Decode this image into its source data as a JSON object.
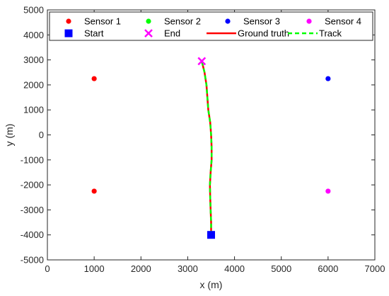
{
  "chart_data": {
    "type": "scatter",
    "title": "",
    "xlabel": "x (m)",
    "ylabel": "y (m)",
    "xlim": [
      0,
      7000
    ],
    "ylim": [
      -5000,
      5000
    ],
    "xticks": [
      0,
      1000,
      2000,
      3000,
      4000,
      5000,
      6000,
      7000
    ],
    "yticks": [
      -5000,
      -4000,
      -3000,
      -2000,
      -1000,
      0,
      1000,
      2000,
      3000,
      4000,
      5000
    ],
    "grid": false,
    "legend_position": "top",
    "series": [
      {
        "name": "Sensor 1",
        "kind": "marker",
        "marker": "circle",
        "color": "#ff0000",
        "points": [
          {
            "x": 1000,
            "y": 2250
          },
          {
            "x": 1000,
            "y": -2250
          }
        ]
      },
      {
        "name": "Sensor 2",
        "kind": "marker",
        "marker": "circle",
        "color": "#00ff00",
        "points": []
      },
      {
        "name": "Sensor 3",
        "kind": "marker",
        "marker": "circle",
        "color": "#0000ff",
        "points": [
          {
            "x": 6000,
            "y": 2250
          }
        ]
      },
      {
        "name": "Sensor 4",
        "kind": "marker",
        "marker": "circle",
        "color": "#ff00ff",
        "points": [
          {
            "x": 6000,
            "y": -2250
          }
        ]
      },
      {
        "name": "Start",
        "kind": "marker",
        "marker": "square",
        "color": "#0000ff",
        "points": [
          {
            "x": 3500,
            "y": -4000
          }
        ]
      },
      {
        "name": "End",
        "kind": "marker",
        "marker": "x",
        "color": "#ff00ff",
        "points": [
          {
            "x": 3300,
            "y": 2950
          }
        ]
      },
      {
        "name": "Ground truth",
        "kind": "line",
        "style": "solid",
        "color": "#ff0000",
        "points": [
          {
            "x": 3500,
            "y": -4000
          },
          {
            "x": 3500,
            "y": -3500
          },
          {
            "x": 3490,
            "y": -3000
          },
          {
            "x": 3480,
            "y": -2500
          },
          {
            "x": 3475,
            "y": -2000
          },
          {
            "x": 3490,
            "y": -1500
          },
          {
            "x": 3510,
            "y": -1000
          },
          {
            "x": 3510,
            "y": -500
          },
          {
            "x": 3500,
            "y": 0
          },
          {
            "x": 3480,
            "y": 500
          },
          {
            "x": 3440,
            "y": 1000
          },
          {
            "x": 3420,
            "y": 1500
          },
          {
            "x": 3400,
            "y": 2000
          },
          {
            "x": 3360,
            "y": 2500
          },
          {
            "x": 3300,
            "y": 2950
          }
        ]
      },
      {
        "name": "Track",
        "kind": "line",
        "style": "dashed",
        "color": "#00ff00",
        "points": [
          {
            "x": 3500,
            "y": -4000
          },
          {
            "x": 3500,
            "y": -3500
          },
          {
            "x": 3490,
            "y": -3000
          },
          {
            "x": 3480,
            "y": -2500
          },
          {
            "x": 3475,
            "y": -2000
          },
          {
            "x": 3490,
            "y": -1500
          },
          {
            "x": 3510,
            "y": -1000
          },
          {
            "x": 3510,
            "y": -500
          },
          {
            "x": 3500,
            "y": 0
          },
          {
            "x": 3480,
            "y": 500
          },
          {
            "x": 3440,
            "y": 1000
          },
          {
            "x": 3420,
            "y": 1500
          },
          {
            "x": 3400,
            "y": 2000
          },
          {
            "x": 3360,
            "y": 2500
          },
          {
            "x": 3300,
            "y": 2950
          }
        ]
      }
    ]
  }
}
